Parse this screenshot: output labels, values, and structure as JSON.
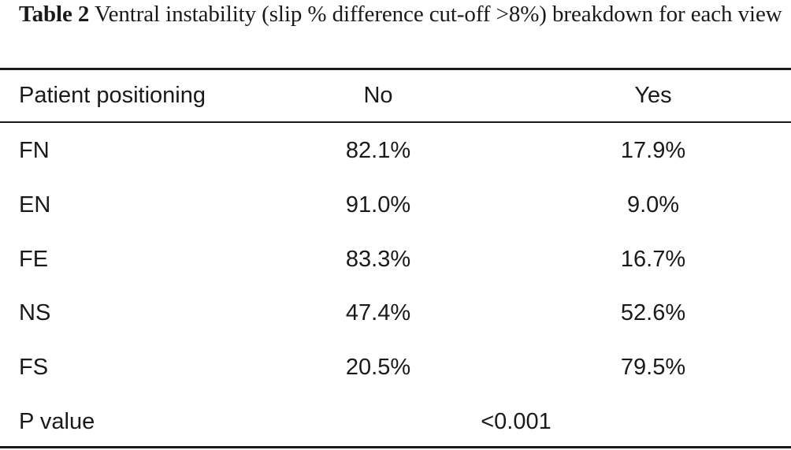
{
  "caption": {
    "label": "Table 2",
    "text": "Ventral instability (slip % difference cut-off >8%) breakdown for each view"
  },
  "table": {
    "headers": [
      "Patient positioning",
      "No",
      "Yes"
    ],
    "rows": [
      {
        "position": "FN",
        "no": "82.1%",
        "yes": "17.9%"
      },
      {
        "position": "EN",
        "no": "91.0%",
        "yes": "9.0%"
      },
      {
        "position": "FE",
        "no": "83.3%",
        "yes": "16.7%"
      },
      {
        "position": "NS",
        "no": "47.4%",
        "yes": "52.6%"
      },
      {
        "position": "FS",
        "no": "20.5%",
        "yes": "79.5%"
      }
    ],
    "footer": {
      "label": "P value",
      "value": "<0.001"
    }
  }
}
